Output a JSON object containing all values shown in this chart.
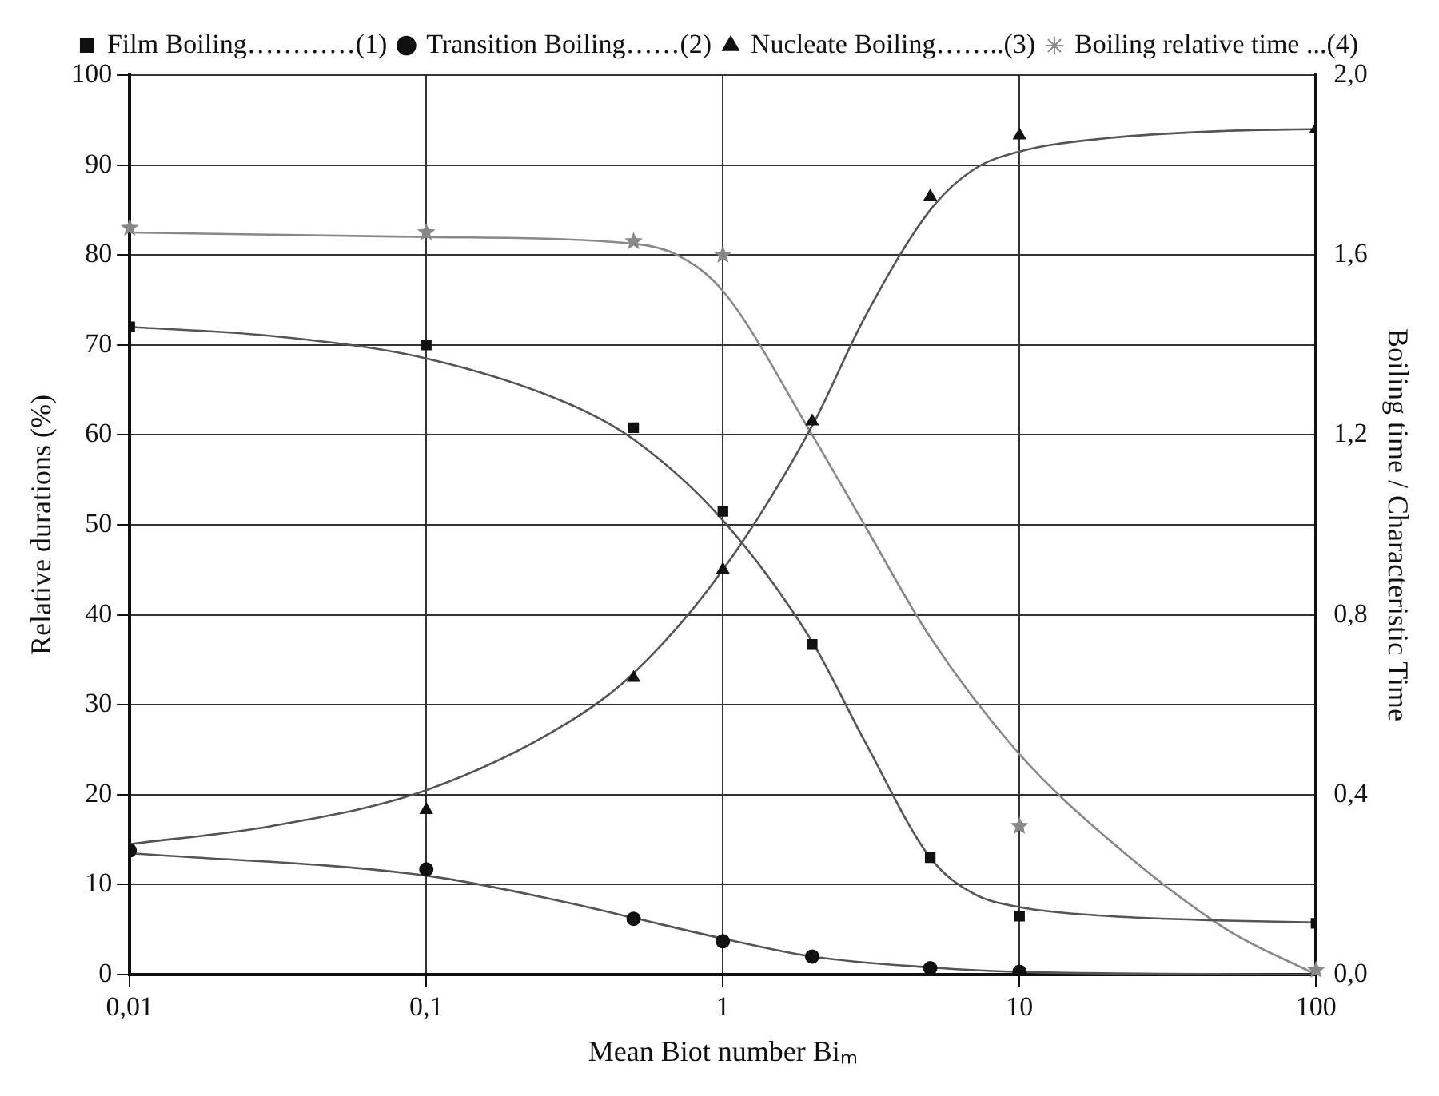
{
  "chart_data": {
    "type": "scatter",
    "xlabel": "Mean Biot number Biₘ",
    "ylabel": "Relative durations (%)",
    "y2label": "Boiling time / Characteristic Time",
    "log": "x",
    "grid": true,
    "legend": "top",
    "xlim": [
      0.01,
      100
    ],
    "xticks": [
      {
        "value": 0.01,
        "label": "0,01"
      },
      {
        "value": 0.1,
        "label": "0,1"
      },
      {
        "value": 1,
        "label": "1"
      },
      {
        "value": 10,
        "label": "10"
      },
      {
        "value": 100,
        "label": "100"
      }
    ],
    "ylim": [
      0,
      100
    ],
    "yticks": [
      0,
      10,
      20,
      30,
      40,
      50,
      60,
      70,
      80,
      90,
      100
    ],
    "y2lim": [
      0,
      2
    ],
    "y2ticks": [
      {
        "value": 0,
        "label": "0,0"
      },
      {
        "value": 0.2,
        "label": null
      },
      {
        "value": 0.4,
        "label": "0,4"
      },
      {
        "value": 0.6,
        "label": null
      },
      {
        "value": 0.8,
        "label": "0,8"
      },
      {
        "value": 1,
        "label": null
      },
      {
        "value": 1.2,
        "label": "1,2"
      },
      {
        "value": 1.4,
        "label": null
      },
      {
        "value": 1.6,
        "label": "1,6"
      },
      {
        "value": 1.8,
        "label": null
      },
      {
        "value": 2,
        "label": "2,0"
      }
    ],
    "series": [
      {
        "name": "Film Boiling…………(1)",
        "type": "scatter",
        "marker": "square",
        "color": "#111111",
        "x": [
          0.01,
          0.1,
          0.5,
          1,
          2,
          5,
          10,
          100
        ],
        "values": [
          72,
          70,
          60.8,
          51.5,
          36.7,
          13,
          6.5,
          5.7
        ]
      },
      {
        "name": "Transition Boiling……(2)",
        "type": "scatter",
        "marker": "circle",
        "color": "#111111",
        "x": [
          0.01,
          0.1,
          0.5,
          1,
          2,
          5,
          10
        ],
        "values": [
          13.8,
          11.7,
          6.2,
          3.7,
          2,
          0.7,
          0.3
        ]
      },
      {
        "name": "Nucleate Boiling……..(3)",
        "type": "scatter",
        "marker": "triangle",
        "color": "#111111",
        "x": [
          0.1,
          0.5,
          1,
          2,
          5,
          10,
          100
        ],
        "values": [
          18.3,
          33,
          45,
          61.5,
          86.5,
          93.3,
          94
        ]
      },
      {
        "name": "Boiling relative time ...(4)",
        "type": "scatter",
        "marker": "star",
        "color": "#888888",
        "axis": "y2",
        "x": [
          0.01,
          0.1,
          0.5,
          1,
          10,
          100
        ],
        "values": [
          1.66,
          1.65,
          1.63,
          1.6,
          0.33,
          0.01
        ]
      },
      {
        "type": "line",
        "marker": "none",
        "color": "#555555",
        "x": [
          0.01,
          0.03,
          0.1,
          0.3,
          0.5,
          1,
          2,
          3,
          5,
          7,
          10,
          20,
          50,
          100
        ],
        "values": [
          72,
          71,
          68.5,
          63.5,
          59.5,
          50.5,
          37,
          26,
          13,
          9,
          7.5,
          6.5,
          6,
          5.8
        ]
      },
      {
        "type": "line",
        "marker": "none",
        "color": "#555555",
        "x": [
          0.01,
          0.1,
          0.3,
          0.5,
          1,
          2,
          5,
          10,
          100
        ],
        "values": [
          13.5,
          11,
          8,
          6.3,
          4,
          2,
          0.8,
          0.3,
          0
        ]
      },
      {
        "type": "line",
        "marker": "none",
        "color": "#555555",
        "x": [
          0.01,
          0.03,
          0.1,
          0.3,
          0.5,
          1,
          2,
          3,
          5,
          7,
          10,
          20,
          50,
          100
        ],
        "values": [
          14.5,
          16.5,
          20.5,
          28,
          33.5,
          45,
          61,
          73,
          85,
          89.5,
          91.5,
          93,
          93.8,
          94
        ]
      },
      {
        "type": "line",
        "marker": "none",
        "color": "#888888",
        "axis": "y2",
        "x": [
          0.01,
          0.1,
          0.5,
          0.7,
          1,
          2,
          3,
          5,
          10,
          20,
          50,
          100
        ],
        "values": [
          1.65,
          1.64,
          1.625,
          1.6,
          1.52,
          1.2,
          1,
          0.75,
          0.49,
          0.3,
          0.1,
          0
        ]
      }
    ]
  }
}
